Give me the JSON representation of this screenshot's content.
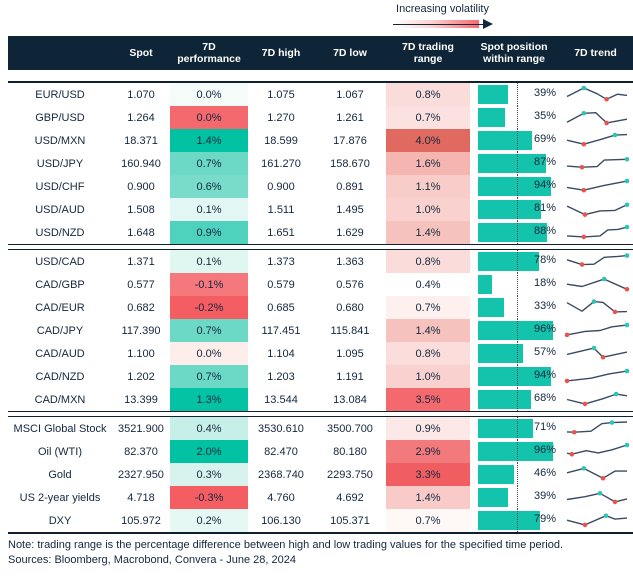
{
  "legend": {
    "label": "Increasing volatility"
  },
  "footer": {
    "note": "Note: trading range is the percentage difference between high and low trading values for the specified time period.",
    "sources": "Sources: Bloomberg, Macrobond, Convera - June 28, 2024"
  },
  "style": {
    "header_bg": "#0e2538",
    "bar_teal": "#14c3ab",
    "spark_line": "#3a4a63",
    "dot_red": "#e8534e",
    "dot_teal": "#2cc5b2",
    "accent_red": "#f4696e",
    "accent_teal": "#00c2a3"
  },
  "chart_data": {
    "type": "table",
    "columns": [
      "",
      "Spot",
      "7D performance",
      "7D high",
      "7D low",
      "7D trading range",
      "Spot position within range",
      "7D trend"
    ],
    "midline_pct": 50,
    "groups": [
      [
        {
          "label": "EUR/USD",
          "spot": "1.070",
          "perf": "0.0%",
          "perf_bg": "#f4fbf9",
          "high": "1.075",
          "low": "1.067",
          "range": "0.8%",
          "range_bg": "#fadcda",
          "pos": 39,
          "trend": [
            [
              0,
              62,
              0
            ],
            [
              28,
              12,
              "t"
            ],
            [
              50,
              45,
              0
            ],
            [
              66,
              78,
              "r"
            ],
            [
              84,
              48,
              0
            ],
            [
              100,
              55,
              0
            ]
          ]
        },
        {
          "label": "GBP/USD",
          "spot": "1.264",
          "perf": "0.0%",
          "perf_bg": "#f4696e",
          "high": "1.270",
          "low": "1.261",
          "range": "0.7%",
          "range_bg": "#fbe2e0",
          "pos": 35,
          "trend": [
            [
              0,
              78,
              0
            ],
            [
              28,
              25,
              "t"
            ],
            [
              48,
              22,
              0
            ],
            [
              66,
              82,
              "r"
            ],
            [
              100,
              60,
              0
            ]
          ]
        },
        {
          "label": "USD/MXN",
          "spot": "18.371",
          "perf": "1.4%",
          "perf_bg": "#00c2a3",
          "high": "18.599",
          "low": "17.876",
          "range": "4.0%",
          "range_bg": "#e06a60",
          "pos": 69,
          "trend": [
            [
              0,
              48,
              0
            ],
            [
              28,
              72,
              "r"
            ],
            [
              55,
              45,
              0
            ],
            [
              80,
              18,
              "t"
            ],
            [
              100,
              15,
              0
            ]
          ]
        },
        {
          "label": "USD/JPY",
          "spot": "160.940",
          "perf": "0.7%",
          "perf_bg": "#6cd9c7",
          "high": "161.270",
          "low": "158.670",
          "range": "1.6%",
          "range_bg": "#f5b6b1",
          "pos": 87,
          "trend": [
            [
              0,
              65,
              0
            ],
            [
              25,
              72,
              "r"
            ],
            [
              50,
              68,
              0
            ],
            [
              62,
              30,
              0
            ],
            [
              100,
              25,
              "t"
            ]
          ]
        },
        {
          "label": "USD/CHF",
          "spot": "0.900",
          "perf": "0.6%",
          "perf_bg": "#79dccb",
          "high": "0.900",
          "low": "0.891",
          "range": "1.1%",
          "range_bg": "#f8cdc9",
          "pos": 94,
          "trend": [
            [
              0,
              55,
              0
            ],
            [
              28,
              72,
              "r"
            ],
            [
              60,
              45,
              0
            ],
            [
              100,
              18,
              "t"
            ]
          ]
        },
        {
          "label": "USD/AUD",
          "spot": "1.508",
          "perf": "0.1%",
          "perf_bg": "#e2f7f3",
          "high": "1.511",
          "low": "1.495",
          "range": "1.0%",
          "range_bg": "#f9d2cf",
          "pos": 81,
          "trend": [
            [
              0,
              30,
              0
            ],
            [
              30,
              80,
              "r"
            ],
            [
              55,
              58,
              0
            ],
            [
              80,
              55,
              0
            ],
            [
              100,
              22,
              "t"
            ]
          ]
        },
        {
          "label": "USD/NZD",
          "spot": "1.648",
          "perf": "0.9%",
          "perf_bg": "#4ed2bd",
          "high": "1.651",
          "low": "1.629",
          "range": "1.4%",
          "range_bg": "#f6c2be",
          "pos": 88,
          "trend": [
            [
              0,
              70,
              0
            ],
            [
              28,
              76,
              "r"
            ],
            [
              55,
              70,
              0
            ],
            [
              68,
              35,
              0
            ],
            [
              85,
              32,
              0
            ],
            [
              100,
              18,
              "t"
            ]
          ]
        }
      ],
      [
        {
          "label": "USD/CAD",
          "spot": "1.371",
          "perf": "0.1%",
          "perf_bg": "#dff6f1",
          "high": "1.373",
          "low": "1.363",
          "range": "0.8%",
          "range_bg": "#fadcda",
          "pos": 78,
          "trend": [
            [
              0,
              40,
              0
            ],
            [
              25,
              68,
              "r"
            ],
            [
              45,
              66,
              0
            ],
            [
              62,
              25,
              0
            ],
            [
              85,
              20,
              0
            ],
            [
              100,
              15,
              "t"
            ]
          ]
        },
        {
          "label": "CAD/GBP",
          "spot": "0.577",
          "perf": "-0.1%",
          "perf_bg": "#f5787c",
          "high": "0.579",
          "low": "0.576",
          "range": "0.4%",
          "range_bg": "#ffffff",
          "pos": 18,
          "trend": [
            [
              0,
              48,
              0
            ],
            [
              25,
              62,
              0
            ],
            [
              62,
              18,
              "t"
            ],
            [
              100,
              78,
              "r"
            ]
          ]
        },
        {
          "label": "CAD/EUR",
          "spot": "0.682",
          "perf": "-0.2%",
          "perf_bg": "#f45d62",
          "high": "0.685",
          "low": "0.680",
          "range": "0.7%",
          "range_bg": "#fdf0ef",
          "pos": 33,
          "trend": [
            [
              0,
              22,
              0
            ],
            [
              25,
              72,
              0
            ],
            [
              45,
              15,
              "t"
            ],
            [
              60,
              20,
              0
            ],
            [
              80,
              76,
              "r"
            ],
            [
              100,
              74,
              0
            ]
          ]
        },
        {
          "label": "CAD/JPY",
          "spot": "117.390",
          "perf": "0.7%",
          "perf_bg": "#6cd9c7",
          "high": "117.451",
          "low": "115.841",
          "range": "1.4%",
          "range_bg": "#f6c2be",
          "pos": 96,
          "trend": [
            [
              0,
              76,
              "r"
            ],
            [
              30,
              55,
              0
            ],
            [
              55,
              50,
              0
            ],
            [
              75,
              28,
              0
            ],
            [
              100,
              18,
              "t"
            ]
          ]
        },
        {
          "label": "CAD/AUD",
          "spot": "1.100",
          "perf": "0.0%",
          "perf_bg": "#fdeeec",
          "high": "1.104",
          "low": "1.095",
          "range": "0.8%",
          "range_bg": "#fbdedc",
          "pos": 57,
          "trend": [
            [
              0,
              55,
              0
            ],
            [
              45,
              18,
              "t"
            ],
            [
              60,
              72,
              "r"
            ],
            [
              100,
              42,
              0
            ]
          ]
        },
        {
          "label": "CAD/NZD",
          "spot": "1.202",
          "perf": "0.7%",
          "perf_bg": "#6cd9c7",
          "high": "1.203",
          "low": "1.191",
          "range": "1.0%",
          "range_bg": "#f9d2cf",
          "pos": 94,
          "trend": [
            [
              0,
              76,
              "r"
            ],
            [
              40,
              60,
              0
            ],
            [
              70,
              35,
              0
            ],
            [
              100,
              18,
              "t"
            ]
          ]
        },
        {
          "label": "CAD/MXN",
          "spot": "13.399",
          "perf": "1.3%",
          "perf_bg": "#04c2a4",
          "high": "13.544",
          "low": "13.084",
          "range": "3.5%",
          "range_bg": "#f4696e",
          "pos": 68,
          "trend": [
            [
              0,
              50,
              0
            ],
            [
              30,
              76,
              "r"
            ],
            [
              60,
              45,
              0
            ],
            [
              82,
              18,
              "t"
            ],
            [
              100,
              28,
              0
            ]
          ]
        }
      ],
      [
        {
          "label": "MSCI Global Stock",
          "spot": "3521.900",
          "perf": "0.4%",
          "perf_bg": "#c6efe7",
          "high": "3530.610",
          "low": "3500.700",
          "range": "0.9%",
          "range_bg": "#fce8e7",
          "pos": 71,
          "trend": [
            [
              0,
              70,
              0
            ],
            [
              12,
              72,
              "r"
            ],
            [
              40,
              66,
              0
            ],
            [
              58,
              22,
              0
            ],
            [
              75,
              15,
              "t"
            ],
            [
              100,
              12,
              0
            ]
          ]
        },
        {
          "label": "Oil (WTI)",
          "spot": "82.370",
          "perf": "2.0%",
          "perf_bg": "#00c2a3",
          "high": "82.470",
          "low": "80.180",
          "range": "2.9%",
          "range_bg": "#f37a7c",
          "pos": 96,
          "trend": [
            [
              0,
              60,
              0
            ],
            [
              8,
              66,
              "r"
            ],
            [
              32,
              45,
              0
            ],
            [
              52,
              58,
              0
            ],
            [
              75,
              40,
              0
            ],
            [
              100,
              12,
              "t"
            ]
          ]
        },
        {
          "label": "Gold",
          "spot": "2327.950",
          "perf": "0.3%",
          "perf_bg": "#d8f3ed",
          "high": "2368.740",
          "low": "2293.750",
          "range": "3.3%",
          "range_bg": "#f05e62",
          "pos": 46,
          "trend": [
            [
              0,
              40,
              0
            ],
            [
              28,
              14,
              "t"
            ],
            [
              60,
              72,
              "r"
            ],
            [
              80,
              30,
              0
            ],
            [
              100,
              30,
              0
            ]
          ]
        },
        {
          "label": "US 2-year yields",
          "spot": "4.718",
          "perf": "-0.3%",
          "perf_bg": "#f45d62",
          "high": "4.760",
          "low": "4.692",
          "range": "1.4%",
          "range_bg": "#f8cbc9",
          "pos": 39,
          "trend": [
            [
              0,
              62,
              0
            ],
            [
              30,
              45,
              0
            ],
            [
              55,
              25,
              "t"
            ],
            [
              80,
              76,
              "r"
            ],
            [
              100,
              58,
              0
            ]
          ]
        },
        {
          "label": "DXY",
          "spot": "105.972",
          "perf": "0.2%",
          "perf_bg": "#e5f8f4",
          "high": "106.130",
          "low": "105.371",
          "range": "0.7%",
          "range_bg": "#fef8f7",
          "pos": 79,
          "trend": [
            [
              0,
              48,
              0
            ],
            [
              30,
              76,
              "r"
            ],
            [
              65,
              22,
              "t"
            ],
            [
              80,
              42,
              0
            ],
            [
              100,
              36,
              0
            ]
          ]
        }
      ]
    ]
  }
}
